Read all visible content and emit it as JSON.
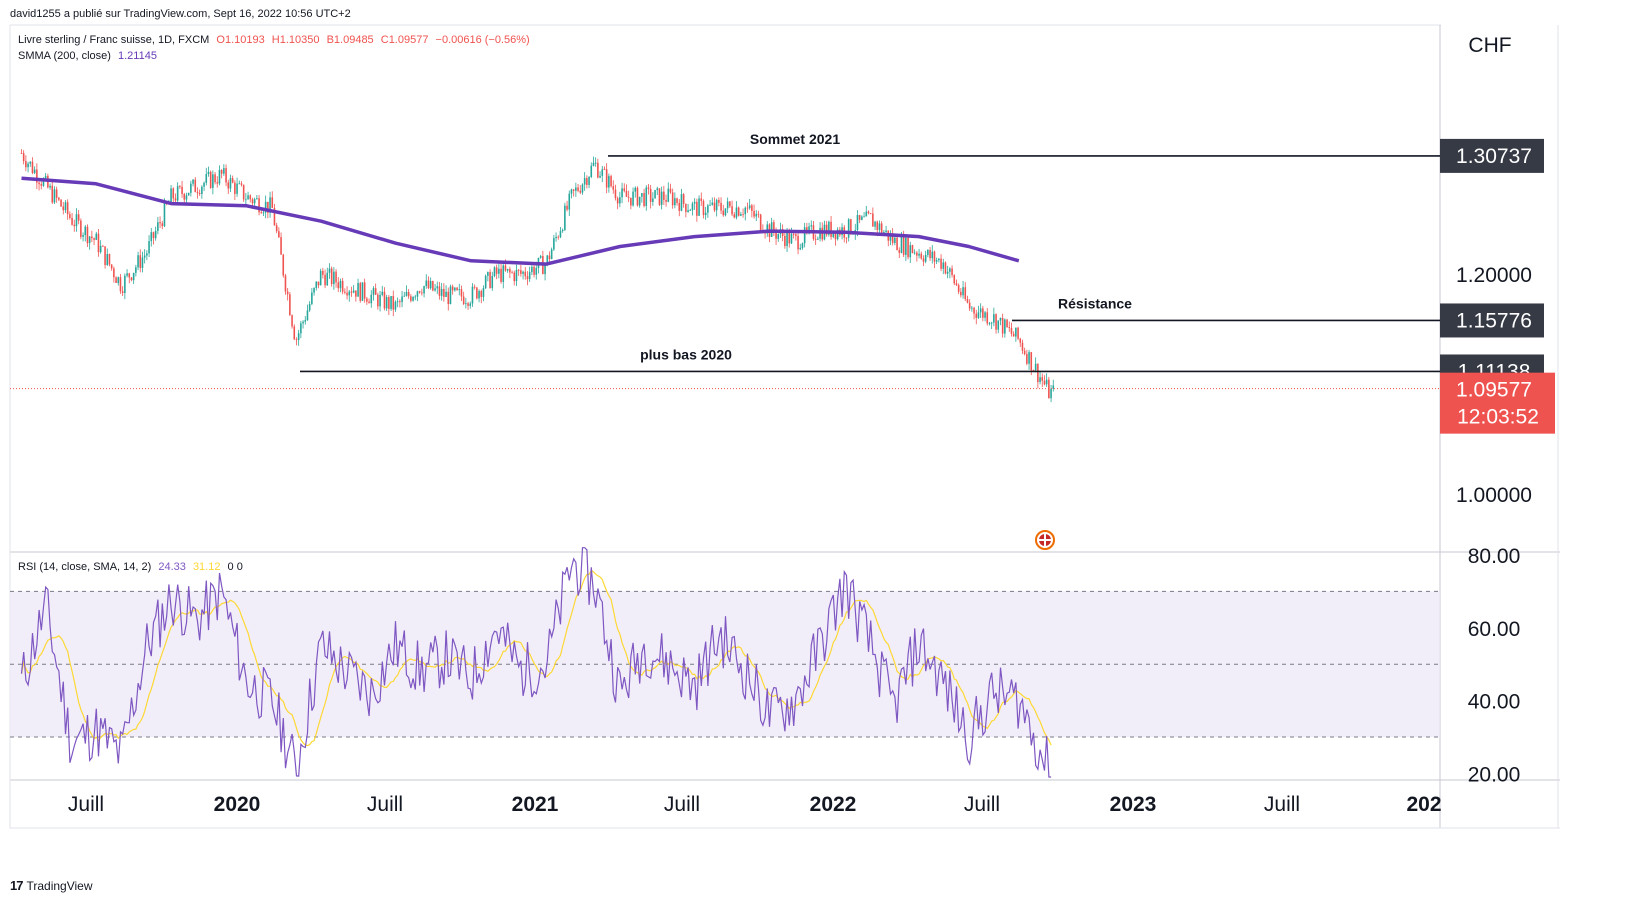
{
  "header": {
    "publisher": "david1255 a publié sur TradingView.com, Sept 16, 2022 10:56 UTC+2"
  },
  "legend": {
    "symbol": "Livre sterling / Franc suisse, 1D, FXCM",
    "o": "O1.10193",
    "h": "H1.10350",
    "b": "B1.09485",
    "c": "C1.09577",
    "change": "−0.00616 (−0.56%)",
    "smma_label": "SMMA (200, close)",
    "smma_value": "1.21145",
    "rsi_label": "RSI (14, close, SMA, 14, 2)",
    "rsi_value": "24.33",
    "rsi_sma": "31.12",
    "rsi_extra": "0  0"
  },
  "colors": {
    "up": "#26a69a",
    "down": "#ef5350",
    "smma": "#673ab7",
    "rsi": "#7e57c2",
    "rsi_sma": "#fdd835",
    "band": "#ede7f6",
    "price_tag": "#ef5350",
    "level_tag": "#363a45"
  },
  "footer": {
    "brand": "TradingView",
    "logo_icon": "tradingview-logo-icon"
  },
  "chart_data": {
    "type": "candlestick",
    "currency": "CHF",
    "price_ticks": [
      "1.20000",
      "1.00000"
    ],
    "rsi_ticks": [
      "80.00",
      "60.00",
      "40.00",
      "20.00"
    ],
    "x_ticks": [
      "Juill",
      "2020",
      "Juill",
      "2021",
      "Juill",
      "2022",
      "Juill",
      "2023",
      "Juill",
      "202"
    ],
    "annotations": [
      {
        "label": "Sommet 2021",
        "value": 1.30737
      },
      {
        "label": "Résistance",
        "value": 1.15776
      },
      {
        "label": "plus bas 2020",
        "value": 1.11138
      }
    ],
    "level_tags": [
      "1.30737",
      "1.15776",
      "1.11138"
    ],
    "last_price": {
      "value": "1.09577",
      "countdown": "12:03:52"
    },
    "price_series": [
      {
        "d": "2019-04",
        "v": 1.31
      },
      {
        "d": "2019-05",
        "v": 1.28
      },
      {
        "d": "2019-06",
        "v": 1.25
      },
      {
        "d": "2019-07",
        "v": 1.23
      },
      {
        "d": "2019-08",
        "v": 1.19
      },
      {
        "d": "2019-09",
        "v": 1.22
      },
      {
        "d": "2019-10",
        "v": 1.27
      },
      {
        "d": "2019-11",
        "v": 1.28
      },
      {
        "d": "2019-12",
        "v": 1.29
      },
      {
        "d": "2020-01",
        "v": 1.27
      },
      {
        "d": "2020-02",
        "v": 1.26
      },
      {
        "d": "2020-03",
        "v": 1.14
      },
      {
        "d": "2020-04",
        "v": 1.2
      },
      {
        "d": "2020-05",
        "v": 1.19
      },
      {
        "d": "2020-06",
        "v": 1.18
      },
      {
        "d": "2020-07",
        "v": 1.17
      },
      {
        "d": "2020-08",
        "v": 1.19
      },
      {
        "d": "2020-09",
        "v": 1.18
      },
      {
        "d": "2020-10",
        "v": 1.18
      },
      {
        "d": "2020-11",
        "v": 1.2
      },
      {
        "d": "2020-12",
        "v": 1.2
      },
      {
        "d": "2021-01",
        "v": 1.21
      },
      {
        "d": "2021-02",
        "v": 1.27
      },
      {
        "d": "2021-03",
        "v": 1.3
      },
      {
        "d": "2021-04",
        "v": 1.27
      },
      {
        "d": "2021-05",
        "v": 1.27
      },
      {
        "d": "2021-06",
        "v": 1.27
      },
      {
        "d": "2021-07",
        "v": 1.26
      },
      {
        "d": "2021-08",
        "v": 1.26
      },
      {
        "d": "2021-09",
        "v": 1.26
      },
      {
        "d": "2021-10",
        "v": 1.24
      },
      {
        "d": "2021-11",
        "v": 1.23
      },
      {
        "d": "2021-12",
        "v": 1.24
      },
      {
        "d": "2022-01",
        "v": 1.24
      },
      {
        "d": "2022-02",
        "v": 1.25
      },
      {
        "d": "2022-03",
        "v": 1.23
      },
      {
        "d": "2022-04",
        "v": 1.22
      },
      {
        "d": "2022-05",
        "v": 1.21
      },
      {
        "d": "2022-06",
        "v": 1.17
      },
      {
        "d": "2022-07",
        "v": 1.16
      },
      {
        "d": "2022-08",
        "v": 1.14
      },
      {
        "d": "2022-09",
        "v": 1.1
      }
    ],
    "smma_series": [
      {
        "d": "2019-04",
        "v": 1.287
      },
      {
        "d": "2019-07",
        "v": 1.282
      },
      {
        "d": "2019-10",
        "v": 1.264
      },
      {
        "d": "2020-01",
        "v": 1.262
      },
      {
        "d": "2020-04",
        "v": 1.248
      },
      {
        "d": "2020-07",
        "v": 1.228
      },
      {
        "d": "2020-10",
        "v": 1.212
      },
      {
        "d": "2021-01",
        "v": 1.209
      },
      {
        "d": "2021-04",
        "v": 1.225
      },
      {
        "d": "2021-07",
        "v": 1.234
      },
      {
        "d": "2021-10",
        "v": 1.239
      },
      {
        "d": "2022-01",
        "v": 1.238
      },
      {
        "d": "2022-04",
        "v": 1.234
      },
      {
        "d": "2022-06",
        "v": 1.225
      },
      {
        "d": "2022-08",
        "v": 1.212
      }
    ],
    "rsi_series": [
      {
        "d": "2019-04",
        "v": 45
      },
      {
        "d": "2019-05",
        "v": 66
      },
      {
        "d": "2019-06",
        "v": 28
      },
      {
        "d": "2019-07",
        "v": 32
      },
      {
        "d": "2019-08",
        "v": 25
      },
      {
        "d": "2019-09",
        "v": 55
      },
      {
        "d": "2019-10",
        "v": 68
      },
      {
        "d": "2019-11",
        "v": 62
      },
      {
        "d": "2019-12",
        "v": 70
      },
      {
        "d": "2020-01",
        "v": 45
      },
      {
        "d": "2020-02",
        "v": 40
      },
      {
        "d": "2020-03",
        "v": 21
      },
      {
        "d": "2020-04",
        "v": 55
      },
      {
        "d": "2020-05",
        "v": 48
      },
      {
        "d": "2020-06",
        "v": 42
      },
      {
        "d": "2020-07",
        "v": 55
      },
      {
        "d": "2020-08",
        "v": 48
      },
      {
        "d": "2020-09",
        "v": 52
      },
      {
        "d": "2020-10",
        "v": 46
      },
      {
        "d": "2020-11",
        "v": 60
      },
      {
        "d": "2020-12",
        "v": 48
      },
      {
        "d": "2021-01",
        "v": 50
      },
      {
        "d": "2021-02",
        "v": 78
      },
      {
        "d": "2021-03",
        "v": 72
      },
      {
        "d": "2021-04",
        "v": 42
      },
      {
        "d": "2021-05",
        "v": 55
      },
      {
        "d": "2021-06",
        "v": 50
      },
      {
        "d": "2021-07",
        "v": 44
      },
      {
        "d": "2021-08",
        "v": 58
      },
      {
        "d": "2021-09",
        "v": 48
      },
      {
        "d": "2021-10",
        "v": 36
      },
      {
        "d": "2021-11",
        "v": 40
      },
      {
        "d": "2021-12",
        "v": 55
      },
      {
        "d": "2022-01",
        "v": 72
      },
      {
        "d": "2022-02",
        "v": 55
      },
      {
        "d": "2022-03",
        "v": 38
      },
      {
        "d": "2022-04",
        "v": 56
      },
      {
        "d": "2022-05",
        "v": 45
      },
      {
        "d": "2022-06",
        "v": 30
      },
      {
        "d": "2022-07",
        "v": 42
      },
      {
        "d": "2022-08",
        "v": 40
      },
      {
        "d": "2022-09",
        "v": 24
      }
    ],
    "rsi_levels": [
      70,
      50,
      30
    ]
  }
}
